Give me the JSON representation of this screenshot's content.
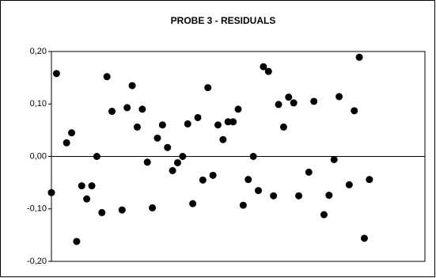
{
  "chart_data": {
    "type": "scatter",
    "title": "PROBE 3 - RESIDUALS",
    "color": "#000000",
    "x": [
      1,
      2,
      4,
      5,
      6,
      7,
      8,
      9,
      10,
      11,
      12,
      13,
      15,
      16,
      17,
      18,
      19,
      20,
      21,
      22,
      23,
      24,
      25,
      26,
      27,
      28,
      29,
      30,
      31,
      32,
      33,
      34,
      35,
      36,
      37,
      38,
      39,
      40,
      41,
      42,
      43,
      44,
      45,
      46,
      47,
      48,
      49,
      50,
      52,
      53,
      55,
      56,
      57,
      58,
      60,
      61,
      62,
      63,
      64
    ],
    "values": [
      -0.069,
      0.158,
      0.026,
      0.045,
      -0.162,
      -0.056,
      -0.081,
      -0.056,
      0.0,
      -0.107,
      0.152,
      0.086,
      -0.102,
      0.093,
      0.135,
      0.056,
      0.09,
      -0.011,
      -0.098,
      0.035,
      0.06,
      0.017,
      -0.027,
      -0.012,
      0.0,
      0.062,
      -0.09,
      0.074,
      -0.045,
      0.131,
      -0.036,
      0.06,
      0.032,
      0.066,
      0.066,
      0.09,
      -0.093,
      -0.044,
      0.0,
      -0.065,
      0.171,
      0.162,
      -0.075,
      0.099,
      0.056,
      0.113,
      0.102,
      -0.075,
      -0.03,
      0.105,
      -0.111,
      -0.074,
      -0.006,
      0.114,
      -0.054,
      0.087,
      0.189,
      -0.156,
      -0.044
    ],
    "xlim": [
      1,
      75
    ],
    "ylim": [
      -0.2,
      0.2
    ],
    "yticks": [
      {
        "value": -0.2,
        "label": "-0,20"
      },
      {
        "value": -0.1,
        "label": "-0,10"
      },
      {
        "value": 0,
        "label": "0,00"
      },
      {
        "value": 0.1,
        "label": "0,10"
      },
      {
        "value": 0.2,
        "label": "0,20"
      }
    ]
  }
}
